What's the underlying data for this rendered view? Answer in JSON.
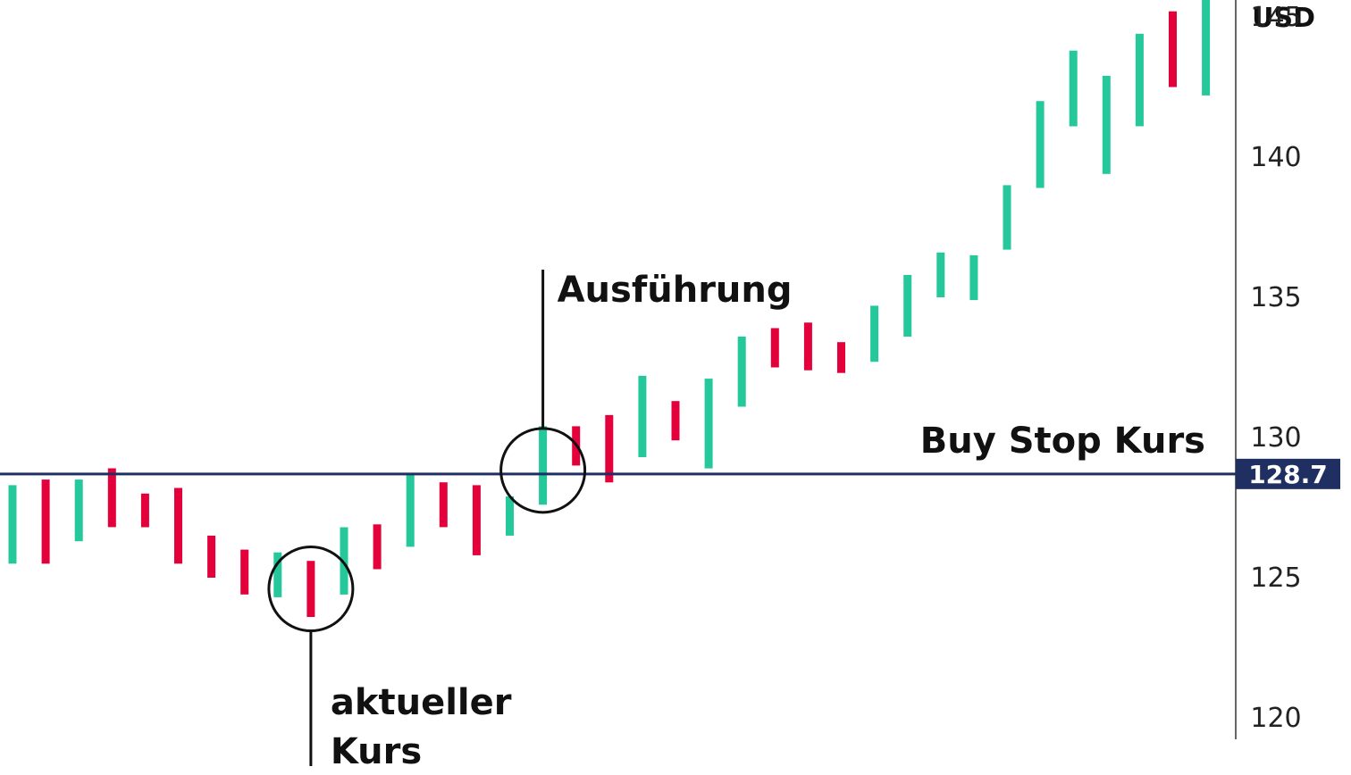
{
  "chart_data": {
    "type": "bar",
    "ohlc_style": "high-low bars",
    "unit_label": "USD",
    "y_ticks": [
      "145",
      "140",
      "135",
      "130",
      "125",
      "120"
    ],
    "ylim": [
      120,
      147
    ],
    "colors": {
      "up": "#25c89b",
      "down": "#e4003a",
      "line": "#1f2f62",
      "text": "#111111",
      "axis": "#333333"
    },
    "bars": [
      {
        "low": 125.5,
        "high": 128.3,
        "dir": "up"
      },
      {
        "low": 125.5,
        "high": 128.5,
        "dir": "down"
      },
      {
        "low": 126.3,
        "high": 128.5,
        "dir": "up"
      },
      {
        "low": 126.8,
        "high": 128.9,
        "dir": "down"
      },
      {
        "low": 126.8,
        "high": 128.0,
        "dir": "down"
      },
      {
        "low": 125.5,
        "high": 128.2,
        "dir": "down"
      },
      {
        "low": 125.0,
        "high": 126.5,
        "dir": "down"
      },
      {
        "low": 124.4,
        "high": 126.0,
        "dir": "down"
      },
      {
        "low": 124.3,
        "high": 125.9,
        "dir": "up"
      },
      {
        "low": 123.6,
        "high": 125.6,
        "dir": "down"
      },
      {
        "low": 124.4,
        "high": 126.8,
        "dir": "up"
      },
      {
        "low": 125.3,
        "high": 126.9,
        "dir": "down"
      },
      {
        "low": 126.1,
        "high": 128.7,
        "dir": "up"
      },
      {
        "low": 126.8,
        "high": 128.4,
        "dir": "down"
      },
      {
        "low": 125.8,
        "high": 128.3,
        "dir": "down"
      },
      {
        "low": 126.5,
        "high": 127.9,
        "dir": "up"
      },
      {
        "low": 127.6,
        "high": 130.4,
        "dir": "up"
      },
      {
        "low": 129.0,
        "high": 130.4,
        "dir": "down"
      },
      {
        "low": 128.4,
        "high": 130.8,
        "dir": "down"
      },
      {
        "low": 129.3,
        "high": 132.2,
        "dir": "up"
      },
      {
        "low": 129.9,
        "high": 131.3,
        "dir": "down"
      },
      {
        "low": 128.9,
        "high": 132.1,
        "dir": "up"
      },
      {
        "low": 131.1,
        "high": 133.6,
        "dir": "up"
      },
      {
        "low": 132.5,
        "high": 133.9,
        "dir": "down"
      },
      {
        "low": 132.4,
        "high": 134.1,
        "dir": "down"
      },
      {
        "low": 132.3,
        "high": 133.4,
        "dir": "down"
      },
      {
        "low": 132.7,
        "high": 134.7,
        "dir": "up"
      },
      {
        "low": 133.6,
        "high": 135.8,
        "dir": "up"
      },
      {
        "low": 135.0,
        "high": 136.6,
        "dir": "up"
      },
      {
        "low": 134.9,
        "high": 136.5,
        "dir": "up"
      },
      {
        "low": 136.7,
        "high": 139.0,
        "dir": "up"
      },
      {
        "low": 138.9,
        "high": 142.0,
        "dir": "up"
      },
      {
        "low": 141.1,
        "high": 143.8,
        "dir": "up"
      },
      {
        "low": 139.4,
        "high": 142.9,
        "dir": "up"
      },
      {
        "low": 141.1,
        "high": 144.4,
        "dir": "up"
      },
      {
        "low": 142.5,
        "high": 145.2,
        "dir": "down"
      },
      {
        "low": 142.2,
        "high": 146.0,
        "dir": "up"
      }
    ],
    "buy_stop": {
      "value": 128.7,
      "label": "Buy Stop Kurs",
      "tag": "128.7"
    },
    "annotations": {
      "current": {
        "bar_index": 9,
        "lines": [
          "aktueller",
          "Kurs"
        ]
      },
      "execution": {
        "bar_index": 16,
        "label": "Ausführung"
      }
    }
  }
}
